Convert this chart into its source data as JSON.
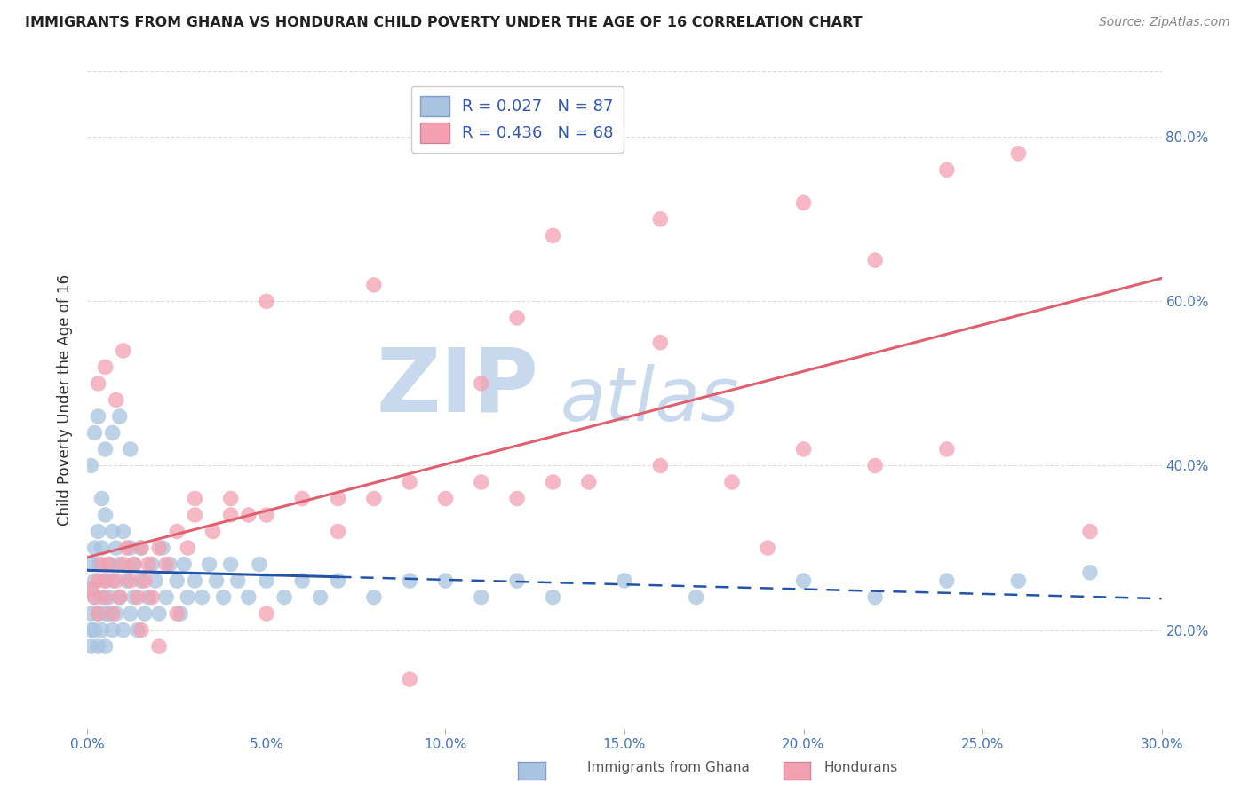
{
  "title": "IMMIGRANTS FROM GHANA VS HONDURAN CHILD POVERTY UNDER THE AGE OF 16 CORRELATION CHART",
  "source": "Source: ZipAtlas.com",
  "ylabel": "Child Poverty Under the Age of 16",
  "right_yticks": [
    0.2,
    0.4,
    0.6,
    0.8
  ],
  "right_yticklabels": [
    "20.0%",
    "40.0%",
    "60.0%",
    "80.0%"
  ],
  "xlim": [
    0.0,
    0.3
  ],
  "ylim": [
    0.08,
    0.88
  ],
  "ghana_R": 0.027,
  "ghana_N": 87,
  "honduran_R": 0.436,
  "honduran_N": 68,
  "ghana_color": "#a8c4e0",
  "honduran_color": "#f4a0b0",
  "ghana_line_color": "#2255aa",
  "honduran_line_color": "#e06070",
  "watermark_zip": "ZIP",
  "watermark_atlas": "atlas",
  "watermark_color": "#c8d8ed",
  "background_color": "#ffffff",
  "grid_color": "#dddddd",
  "seed": 12345,
  "ghana_x": [
    0.001,
    0.001,
    0.001,
    0.001,
    0.001,
    0.002,
    0.002,
    0.002,
    0.002,
    0.003,
    0.003,
    0.003,
    0.003,
    0.004,
    0.004,
    0.004,
    0.004,
    0.005,
    0.005,
    0.005,
    0.005,
    0.006,
    0.006,
    0.006,
    0.007,
    0.007,
    0.007,
    0.008,
    0.008,
    0.009,
    0.009,
    0.01,
    0.01,
    0.011,
    0.012,
    0.012,
    0.013,
    0.013,
    0.014,
    0.015,
    0.015,
    0.016,
    0.017,
    0.018,
    0.019,
    0.02,
    0.021,
    0.022,
    0.023,
    0.025,
    0.026,
    0.027,
    0.028,
    0.03,
    0.032,
    0.034,
    0.036,
    0.038,
    0.04,
    0.042,
    0.045,
    0.048,
    0.05,
    0.055,
    0.06,
    0.065,
    0.07,
    0.08,
    0.09,
    0.1,
    0.11,
    0.12,
    0.13,
    0.15,
    0.17,
    0.2,
    0.22,
    0.24,
    0.26,
    0.28,
    0.001,
    0.002,
    0.003,
    0.005,
    0.007,
    0.009,
    0.012
  ],
  "ghana_y": [
    0.25,
    0.22,
    0.18,
    0.2,
    0.28,
    0.24,
    0.3,
    0.2,
    0.26,
    0.22,
    0.32,
    0.18,
    0.28,
    0.24,
    0.36,
    0.2,
    0.3,
    0.22,
    0.26,
    0.34,
    0.18,
    0.28,
    0.22,
    0.24,
    0.32,
    0.2,
    0.26,
    0.22,
    0.3,
    0.24,
    0.28,
    0.2,
    0.32,
    0.26,
    0.22,
    0.3,
    0.24,
    0.28,
    0.2,
    0.26,
    0.3,
    0.22,
    0.24,
    0.28,
    0.26,
    0.22,
    0.3,
    0.24,
    0.28,
    0.26,
    0.22,
    0.28,
    0.24,
    0.26,
    0.24,
    0.28,
    0.26,
    0.24,
    0.28,
    0.26,
    0.24,
    0.28,
    0.26,
    0.24,
    0.26,
    0.24,
    0.26,
    0.24,
    0.26,
    0.26,
    0.24,
    0.26,
    0.24,
    0.26,
    0.24,
    0.26,
    0.24,
    0.26,
    0.26,
    0.27,
    0.4,
    0.44,
    0.46,
    0.42,
    0.44,
    0.46,
    0.42
  ],
  "honduran_x": [
    0.001,
    0.002,
    0.003,
    0.003,
    0.004,
    0.005,
    0.005,
    0.006,
    0.007,
    0.008,
    0.009,
    0.01,
    0.011,
    0.012,
    0.013,
    0.014,
    0.015,
    0.016,
    0.017,
    0.018,
    0.02,
    0.022,
    0.025,
    0.028,
    0.03,
    0.035,
    0.04,
    0.045,
    0.05,
    0.06,
    0.07,
    0.08,
    0.09,
    0.1,
    0.11,
    0.12,
    0.13,
    0.14,
    0.16,
    0.18,
    0.2,
    0.22,
    0.24,
    0.003,
    0.005,
    0.008,
    0.01,
    0.015,
    0.02,
    0.025,
    0.03,
    0.04,
    0.05,
    0.07,
    0.09,
    0.11,
    0.13,
    0.16,
    0.19,
    0.22,
    0.05,
    0.08,
    0.12,
    0.16,
    0.2,
    0.24,
    0.26,
    0.28
  ],
  "honduran_y": [
    0.25,
    0.24,
    0.26,
    0.22,
    0.28,
    0.24,
    0.26,
    0.28,
    0.22,
    0.26,
    0.24,
    0.28,
    0.3,
    0.26,
    0.28,
    0.24,
    0.3,
    0.26,
    0.28,
    0.24,
    0.3,
    0.28,
    0.32,
    0.3,
    0.34,
    0.32,
    0.36,
    0.34,
    0.34,
    0.36,
    0.36,
    0.36,
    0.38,
    0.36,
    0.38,
    0.36,
    0.38,
    0.38,
    0.4,
    0.38,
    0.42,
    0.4,
    0.42,
    0.5,
    0.52,
    0.48,
    0.54,
    0.2,
    0.18,
    0.22,
    0.36,
    0.34,
    0.22,
    0.32,
    0.14,
    0.5,
    0.68,
    0.7,
    0.3,
    0.65,
    0.6,
    0.62,
    0.58,
    0.55,
    0.72,
    0.76,
    0.78,
    0.32
  ],
  "legend_color": "#3355bb",
  "legend_label_color": "#222222"
}
